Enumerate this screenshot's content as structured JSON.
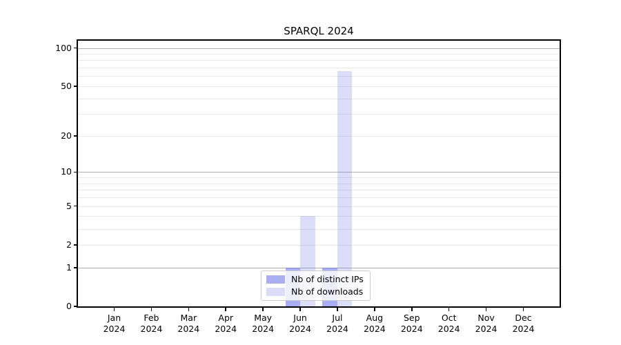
{
  "title": "SPARQL 2024",
  "colors": {
    "background": "#ffffff",
    "axis": "#000000",
    "major_grid": "#b0b0b0",
    "minor_grid": "#e7e7e7",
    "text": "#000000",
    "legend_border": "#cccccc",
    "legend_background": "rgba(255,255,255,0.8)",
    "bar_distinct_ips": "#a8aeee",
    "bar_downloads": "#dcdcf8"
  },
  "chart_data": {
    "type": "bar",
    "title": "SPARQL 2024",
    "categories": [
      "Jan",
      "Feb",
      "Mar",
      "Apr",
      "May",
      "Jun",
      "Jul",
      "Aug",
      "Sep",
      "Oct",
      "Nov",
      "Dec"
    ],
    "x_year_label": "2024",
    "xlabel": "",
    "ylabel": "",
    "series": [
      {
        "name": "Nb of distinct IPs",
        "color": "#a8aeee",
        "color_rgba": "rgba(100,110,230,0.56)",
        "values": [
          0,
          0,
          0,
          0,
          0,
          1,
          1,
          0,
          0,
          0,
          0,
          0
        ]
      },
      {
        "name": "Nb of downloads",
        "color": "#dcdcf8",
        "color_rgba": "rgba(100,110,230,0.23)",
        "values": [
          0,
          0,
          0,
          0,
          0,
          4,
          66,
          0,
          0,
          0,
          0,
          0
        ]
      }
    ],
    "yscale": "log1p",
    "ylim": [
      0,
      114
    ],
    "yticks": [
      0,
      1,
      2,
      5,
      10,
      20,
      50,
      100
    ],
    "major_gridlines": [
      1,
      10,
      100
    ],
    "minor_gridlines": [
      2,
      3,
      4,
      5,
      6,
      7,
      8,
      9,
      20,
      30,
      40,
      50,
      60,
      70,
      80,
      90
    ],
    "grid": true,
    "legend_position": "lower center"
  }
}
